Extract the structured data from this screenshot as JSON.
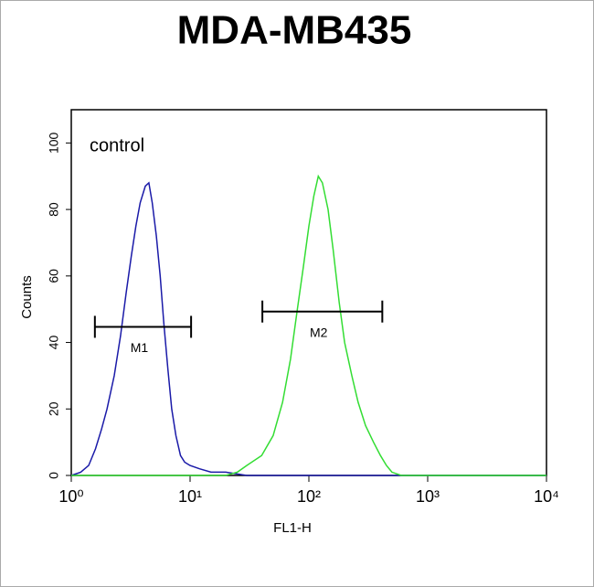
{
  "chart_data": {
    "type": "line",
    "title": "MDA-MB435",
    "xlabel": "FL1-H",
    "ylabel": "Counts",
    "annotation": "control",
    "xscale": "log",
    "xlim": [
      1,
      10000
    ],
    "xticks": [
      {
        "value": 1,
        "label": "10⁰"
      },
      {
        "value": 10,
        "label": "10¹"
      },
      {
        "value": 100,
        "label": "10²"
      },
      {
        "value": 1000,
        "label": "10³"
      },
      {
        "value": 10000,
        "label": "10⁴"
      }
    ],
    "ylim": [
      0,
      110
    ],
    "yticks": [
      0,
      20,
      40,
      60,
      80,
      100
    ],
    "series": [
      {
        "color": "#1a1aa8",
        "x": [
          1.0,
          1.2,
          1.4,
          1.6,
          1.8,
          2.0,
          2.3,
          2.6,
          2.9,
          3.2,
          3.5,
          3.8,
          4.2,
          4.5,
          4.8,
          5.2,
          5.6,
          6.0,
          6.5,
          7.0,
          7.6,
          8.3,
          9.0,
          10,
          12,
          15,
          20,
          30,
          100,
          1000,
          10000
        ],
        "values": [
          0,
          1,
          3,
          8,
          14,
          20,
          30,
          42,
          55,
          66,
          75,
          82,
          87,
          88,
          82,
          72,
          60,
          46,
          32,
          20,
          12,
          6,
          4,
          3,
          2,
          1,
          1,
          0,
          0,
          0,
          0
        ]
      },
      {
        "color": "#33dd33",
        "x": [
          1,
          10,
          20,
          25,
          30,
          40,
          50,
          60,
          70,
          80,
          90,
          100,
          110,
          120,
          130,
          145,
          160,
          180,
          200,
          230,
          260,
          300,
          350,
          400,
          450,
          500,
          600,
          1000,
          10000
        ],
        "values": [
          0,
          0,
          0,
          1,
          3,
          6,
          12,
          22,
          35,
          50,
          63,
          75,
          84,
          90,
          88,
          80,
          68,
          52,
          40,
          30,
          22,
          15,
          10,
          6,
          3,
          1,
          0,
          0,
          0
        ]
      }
    ],
    "markers": [
      {
        "label": "M1",
        "range": [
          1.58,
          10.2
        ],
        "y": 44.7
      },
      {
        "label": "M2",
        "range": [
          40.6,
          415
        ],
        "y": 49.3
      }
    ]
  }
}
